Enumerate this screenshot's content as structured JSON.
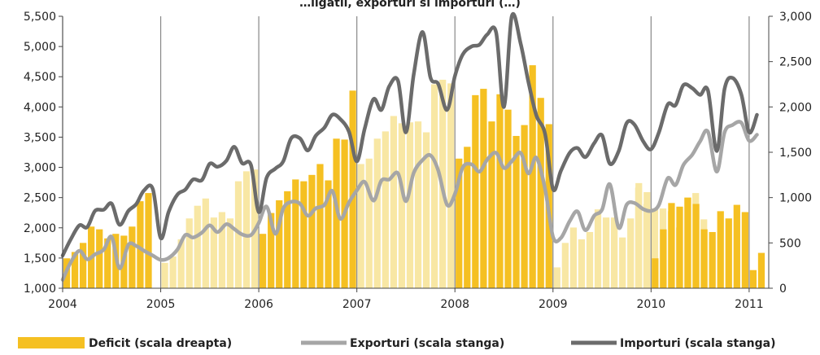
{
  "chart_data": {
    "type": "bar+line",
    "title": "…ligatii, exporturi si importuri (…)",
    "x_ticks": [
      "2004",
      "2005",
      "2006",
      "2007",
      "2008",
      "2009",
      "2010",
      "2011"
    ],
    "y_left": {
      "min": 1000,
      "max": 5500,
      "ticks": [
        "1,000",
        "1,500",
        "2,000",
        "2,500",
        "3,000",
        "3,500",
        "4,000",
        "4,500",
        "5,000",
        "5,500"
      ]
    },
    "y_right": {
      "min": 0,
      "max": 3000,
      "ticks": [
        "0",
        "500",
        "1,000",
        "1,500",
        "2,000",
        "2,500",
        "3,000"
      ]
    },
    "colors": {
      "deficit_dark": "#F5C022",
      "deficit_light": "#F8E7A4",
      "exporturi": "#A6A6A6",
      "importuri": "#6B6B6B",
      "gridline": "#888888"
    },
    "series": [
      {
        "name": "Deficit (scala dreapta)",
        "axis": "right",
        "kind": "bar",
        "shade": [
          "dark",
          "light",
          "dark",
          "light",
          "dark",
          "light",
          "dark",
          "light"
        ],
        "values": [
          [
            330,
            400,
            500,
            680,
            650,
            550,
            600,
            580,
            680,
            960,
            1050
          ],
          [
            280,
            350,
            540,
            770,
            910,
            990,
            780,
            840,
            770,
            1180,
            1290,
            1310
          ],
          [
            600,
            830,
            970,
            1070,
            1200,
            1180,
            1250,
            1370,
            1190,
            1650,
            1640,
            2180
          ],
          [
            1370,
            1430,
            1650,
            1730,
            1900,
            1820,
            1830,
            1840,
            1720,
            2250,
            2300,
            2260
          ],
          [
            1430,
            1560,
            2130,
            2200,
            1840,
            2140,
            1970,
            1680,
            1800,
            2460,
            2100,
            1810
          ],
          [
            230,
            500,
            670,
            540,
            620,
            870,
            780,
            780,
            560,
            770,
            1160,
            1060
          ],
          [
            1110,
            930,
            880,
            880,
            850,
            670,
            1000,
            1050,
            760
          ],
          [
            330,
            650,
            940,
            900,
            1000,
            930,
            650,
            620,
            850,
            770,
            920,
            840
          ],
          [
            200,
            390
          ]
        ]
      },
      {
        "name": "Exporturi (scala stanga)",
        "axis": "left",
        "kind": "line",
        "x": [
          2004.0,
          2004.08,
          2004.17,
          2004.25,
          2004.33,
          2004.42,
          2004.5,
          2004.58,
          2004.67,
          2004.75,
          2004.83,
          2004.92,
          2005.0,
          2005.08,
          2005.17,
          2005.25,
          2005.33,
          2005.42,
          2005.5,
          2005.58,
          2005.67,
          2005.75,
          2005.83,
          2005.92,
          2006.0,
          2006.08,
          2006.17,
          2006.25,
          2006.33,
          2006.42,
          2006.5,
          2006.58,
          2006.67,
          2006.75,
          2006.83,
          2006.92,
          2007.0,
          2007.08,
          2007.17,
          2007.25,
          2007.33,
          2007.42,
          2007.5,
          2007.58,
          2007.67,
          2007.75,
          2007.83,
          2007.92,
          2008.0,
          2008.08,
          2008.17,
          2008.25,
          2008.33,
          2008.42,
          2008.5,
          2008.58,
          2008.67,
          2008.75,
          2008.83,
          2008.92,
          2009.0,
          2009.08,
          2009.17,
          2009.25,
          2009.33,
          2009.42,
          2009.5,
          2009.58,
          2009.67,
          2009.75,
          2009.83,
          2009.92,
          2010.0,
          2010.08,
          2010.17,
          2010.25,
          2010.33,
          2010.42,
          2010.5,
          2010.58,
          2010.67,
          2010.75,
          2010.83,
          2010.92,
          2011.0,
          2011.08
        ],
        "values": [
          1140,
          1420,
          1620,
          1480,
          1560,
          1640,
          1850,
          1330,
          1720,
          1700,
          1620,
          1540,
          1470,
          1500,
          1640,
          1880,
          1840,
          1920,
          2040,
          1930,
          2060,
          1980,
          1890,
          1880,
          2080,
          2350,
          1900,
          2320,
          2430,
          2400,
          2200,
          2320,
          2380,
          2610,
          2150,
          2420,
          2620,
          2760,
          2450,
          2780,
          2800,
          2900,
          2440,
          2910,
          3120,
          3200,
          2950,
          2380,
          2560,
          3000,
          3050,
          2930,
          3130,
          3240,
          2990,
          3100,
          3240,
          2900,
          3160,
          2640,
          1850,
          1830,
          2110,
          2270,
          1960,
          2200,
          2300,
          2720,
          2000,
          2380,
          2410,
          2310,
          2280,
          2380,
          2820,
          2710,
          3040,
          3210,
          3430,
          3590,
          2930,
          3580,
          3700,
          3740,
          3440,
          3540
        ]
      },
      {
        "name": "Importuri (scala stanga)",
        "axis": "left",
        "kind": "line",
        "x": [
          2004.0,
          2004.08,
          2004.17,
          2004.25,
          2004.33,
          2004.42,
          2004.5,
          2004.58,
          2004.67,
          2004.75,
          2004.83,
          2004.92,
          2005.0,
          2005.08,
          2005.17,
          2005.25,
          2005.33,
          2005.42,
          2005.5,
          2005.58,
          2005.67,
          2005.75,
          2005.83,
          2005.92,
          2006.0,
          2006.08,
          2006.17,
          2006.25,
          2006.33,
          2006.42,
          2006.5,
          2006.58,
          2006.67,
          2006.75,
          2006.83,
          2006.92,
          2007.0,
          2007.08,
          2007.17,
          2007.25,
          2007.33,
          2007.42,
          2007.5,
          2007.58,
          2007.67,
          2007.75,
          2007.83,
          2007.92,
          2008.0,
          2008.08,
          2008.17,
          2008.25,
          2008.33,
          2008.42,
          2008.5,
          2008.58,
          2008.67,
          2008.75,
          2008.83,
          2008.92,
          2009.0,
          2009.08,
          2009.17,
          2009.25,
          2009.33,
          2009.42,
          2009.5,
          2009.58,
          2009.67,
          2009.75,
          2009.83,
          2009.92,
          2010.0,
          2010.08,
          2010.17,
          2010.25,
          2010.33,
          2010.42,
          2010.5,
          2010.58,
          2010.67,
          2010.75,
          2010.83,
          2010.92,
          2011.0,
          2011.08
        ],
        "values": [
          1540,
          1800,
          2040,
          2010,
          2280,
          2300,
          2400,
          2050,
          2280,
          2390,
          2620,
          2640,
          1830,
          2260,
          2550,
          2630,
          2800,
          2790,
          3060,
          3010,
          3110,
          3340,
          3070,
          3040,
          2260,
          2830,
          2980,
          3100,
          3480,
          3480,
          3280,
          3520,
          3660,
          3870,
          3800,
          3590,
          3100,
          3640,
          4130,
          3950,
          4340,
          4430,
          3580,
          4540,
          5240,
          4490,
          4380,
          3950,
          4510,
          4870,
          5000,
          5030,
          5200,
          5230,
          4000,
          5500,
          5050,
          4410,
          3860,
          3550,
          2640,
          2940,
          3240,
          3320,
          3170,
          3400,
          3530,
          3060,
          3270,
          3730,
          3710,
          3430,
          3300,
          3580,
          4040,
          4030,
          4360,
          4310,
          4200,
          4270,
          3270,
          4300,
          4480,
          4210,
          3580,
          3870
        ]
      }
    ],
    "legend": [
      {
        "label": "Deficit (scala dreapta)",
        "kind": "bar"
      },
      {
        "label": "Exporturi (scala stanga)",
        "kind": "line-light"
      },
      {
        "label": "Importuri (scala stanga)",
        "kind": "line-dark"
      }
    ]
  }
}
